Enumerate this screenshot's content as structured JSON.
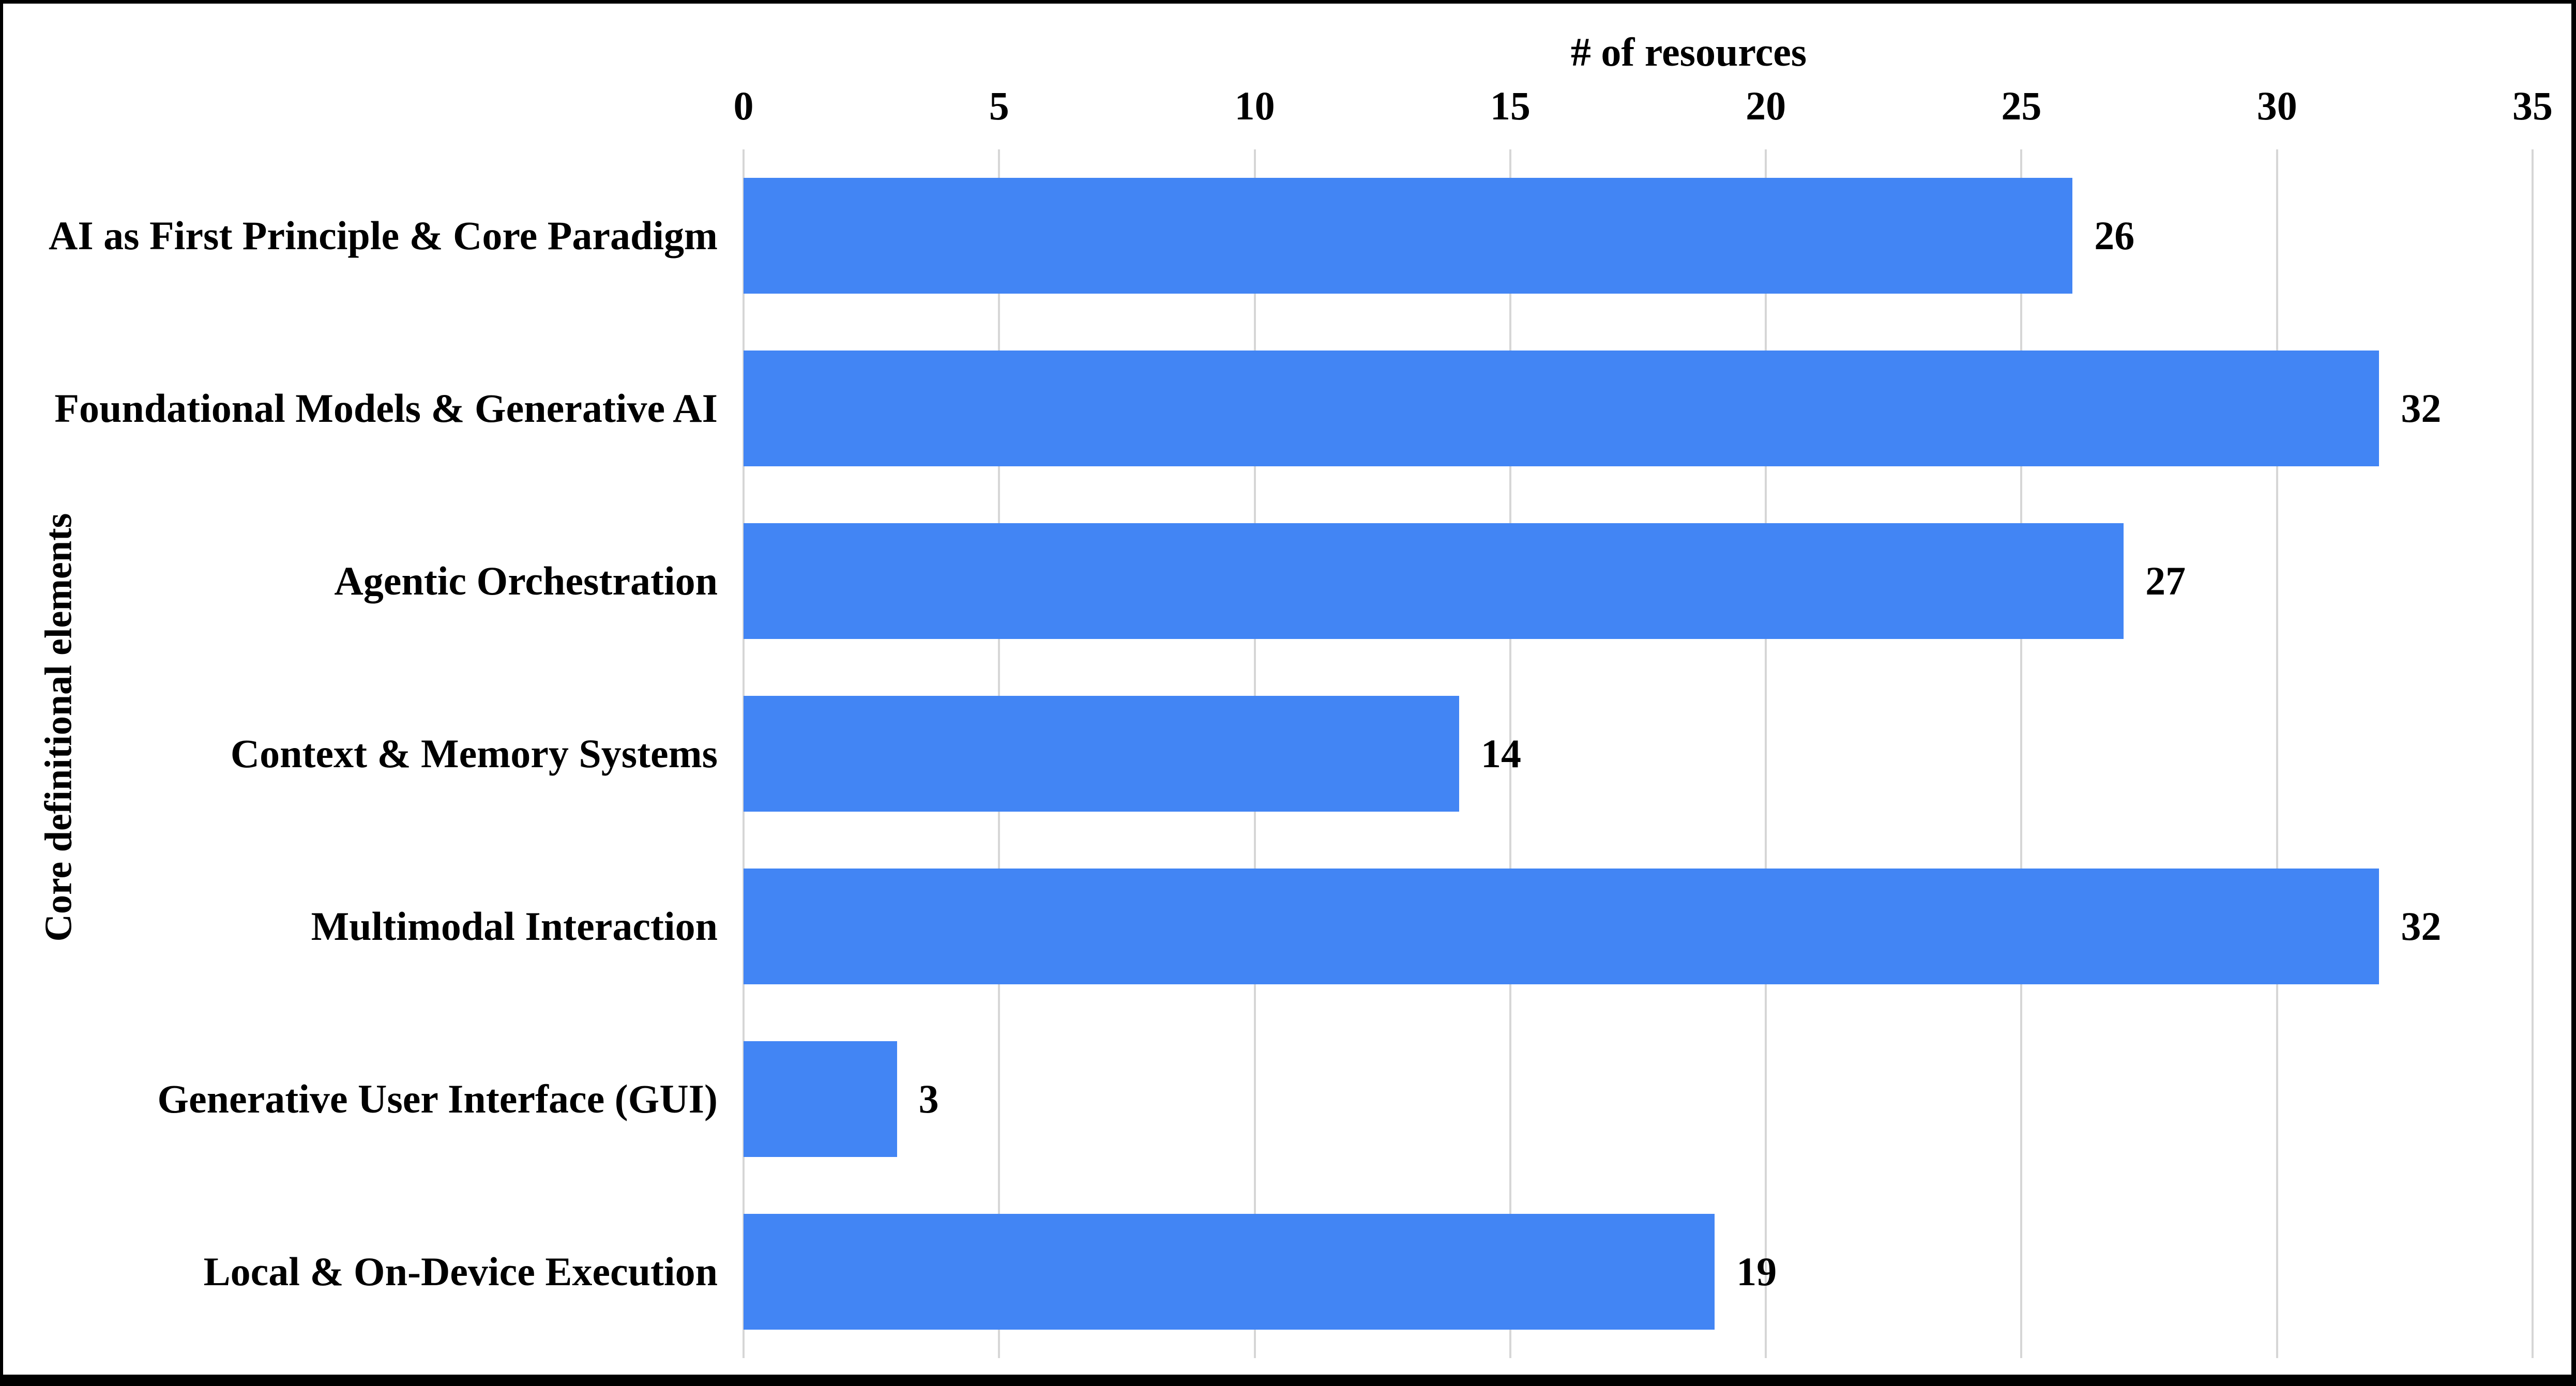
{
  "chart_data": {
    "type": "bar",
    "orientation": "horizontal",
    "title": "# of resources",
    "ylabel": "Core definitional elements",
    "categories": [
      "AI as First Principle & Core Paradigm",
      "Foundational Models & Generative AI",
      "Agentic Orchestration",
      "Context & Memory Systems",
      "Multimodal Interaction",
      "Generative User Interface (GUI)",
      "Local & On-Device Execution"
    ],
    "values": [
      26,
      32,
      27,
      14,
      32,
      3,
      19
    ],
    "xticks": [
      0,
      5,
      10,
      15,
      20,
      25,
      30,
      35
    ],
    "xlim": [
      0,
      35
    ],
    "grid": true,
    "legend_position": "none",
    "bar_color": "#4285F4",
    "gridline_color": "#D6D6D6",
    "text_color": "#000000",
    "frame_color": "#000000"
  }
}
